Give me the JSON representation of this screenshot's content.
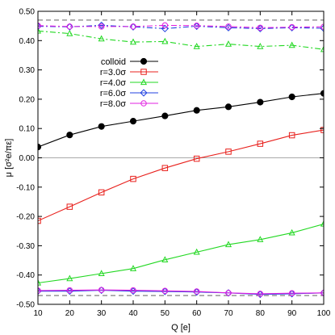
{
  "chart_data": {
    "type": "line",
    "xlabel": "Q [e]",
    "ylabel": "μ [σ²e/πε]",
    "xlim": [
      10,
      100
    ],
    "ylim": [
      -0.5,
      0.5
    ],
    "x_ticks": [
      "10",
      "20",
      "30",
      "40",
      "50",
      "60",
      "70",
      "80",
      "90",
      "100"
    ],
    "y_ticks": [
      "0.50",
      "0.40",
      "0.30",
      "0.20",
      "0.10",
      "0.00",
      "-0.10",
      "-0.20",
      "-0.30",
      "-0.40",
      "-0.50"
    ],
    "x": [
      10,
      20,
      30,
      40,
      50,
      60,
      70,
      80,
      90,
      100
    ],
    "grid": false,
    "legend_position": "top-left",
    "reference_lines": [
      {
        "y": 0.0,
        "color": "#aaaaaa",
        "style": "solid"
      },
      {
        "y": 0.47,
        "color": "#808080",
        "style": "dashed"
      },
      {
        "y": -0.47,
        "color": "#808080",
        "style": "dashed"
      }
    ],
    "series": [
      {
        "name": "colloid",
        "color": "#000000",
        "marker": "circle-filled",
        "line_style": "solid",
        "values": [
          0.037,
          0.078,
          0.107,
          0.125,
          0.143,
          0.162,
          0.174,
          0.19,
          0.208,
          0.22
        ]
      },
      {
        "name": "r=3.0σ",
        "color": "#e8201c",
        "marker": "square-open",
        "line_style": "solid",
        "values": [
          -0.215,
          -0.167,
          -0.118,
          -0.072,
          -0.035,
          -0.003,
          0.021,
          0.048,
          0.077,
          0.095
        ]
      },
      {
        "name": "r=4.0σ",
        "color": "#22d822",
        "marker": "triangle-open",
        "line_style": "solid",
        "values": [
          -0.427,
          -0.412,
          -0.395,
          -0.378,
          -0.348,
          -0.322,
          -0.296,
          -0.279,
          -0.256,
          -0.226
        ]
      },
      {
        "name": "r=4.0σ (upper)",
        "legend": false,
        "color": "#22d822",
        "marker": "triangle-open",
        "line_style": "dashdot",
        "values": [
          0.433,
          0.424,
          0.406,
          0.395,
          0.397,
          0.38,
          0.388,
          0.38,
          0.384,
          0.37
        ]
      },
      {
        "name": "r=6.0σ",
        "color": "#2040e0",
        "marker": "diamond-open",
        "line_style": "solid",
        "values": [
          -0.455,
          -0.455,
          -0.452,
          -0.455,
          -0.456,
          -0.458,
          -0.461,
          -0.466,
          -0.464,
          -0.461
        ]
      },
      {
        "name": "r=6.0σ (upper)",
        "legend": false,
        "color": "#2040e0",
        "marker": "diamond-open",
        "line_style": "dashdot",
        "values": [
          0.449,
          0.447,
          0.452,
          0.447,
          0.441,
          0.449,
          0.444,
          0.441,
          0.444,
          0.442
        ]
      },
      {
        "name": "r=8.0σ",
        "color": "#e020e0",
        "marker": "circle-open",
        "line_style": "solid",
        "values": [
          -0.453,
          -0.452,
          -0.451,
          -0.452,
          -0.454,
          -0.456,
          -0.461,
          -0.464,
          -0.462,
          -0.461
        ]
      },
      {
        "name": "r=8.0σ (upper)",
        "legend": false,
        "color": "#e020e0",
        "marker": "circle-open",
        "line_style": "dashdot",
        "values": [
          0.451,
          0.448,
          0.448,
          0.448,
          0.452,
          0.451,
          0.448,
          0.444,
          0.446,
          0.447
        ]
      }
    ]
  }
}
